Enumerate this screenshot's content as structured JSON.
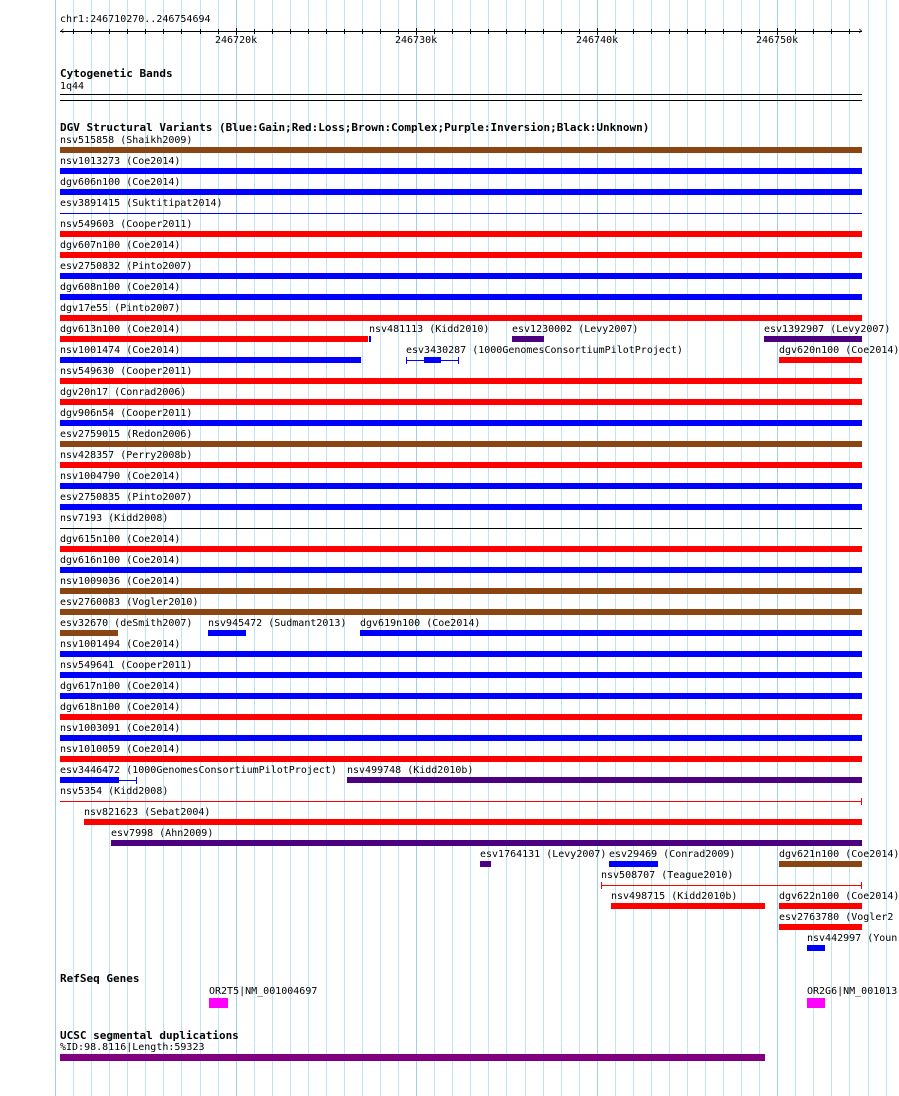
{
  "ruler": {
    "location": "chr1:246710270..246754694",
    "view_start": 246710270,
    "view_end": 246754694,
    "tick_labels": [
      {
        "pos": 246720000,
        "label": "246720k"
      },
      {
        "pos": 246730000,
        "label": "246730k"
      },
      {
        "pos": 246740000,
        "label": "246740k"
      },
      {
        "pos": 246750000,
        "label": "246750k"
      }
    ]
  },
  "cytoband": {
    "title": "Cytogenetic Bands",
    "band": "1q44"
  },
  "colors": {
    "gain": "#0000ff",
    "loss": "#ff0000",
    "complex": "#8b4513",
    "inversion": "#4b0082",
    "unknown": "#000000",
    "gene": "#ff00ff",
    "segdup": "#800080"
  },
  "dgv": {
    "title": "DGV Structural Variants (Blue:Gain;Red:Loss;Brown:Complex;Purple:Inversion;Black:Unknown)",
    "rows": [
      [
        {
          "label": "nsv515858 (Shaikh2009)",
          "type": "complex",
          "start": 246710270,
          "end": 246754694
        }
      ],
      [
        {
          "label": "nsv1013273 (Coe2014)",
          "type": "gain",
          "start": 246710270,
          "end": 246754694
        }
      ],
      [
        {
          "label": "dgv606n100 (Coe2014)",
          "type": "gain",
          "start": 246710270,
          "end": 246754694
        }
      ],
      [
        {
          "label": "esv3891415 (Suktitipat2014)",
          "type": "gain",
          "start": 246710270,
          "end": 246754694,
          "thin": true
        }
      ],
      [
        {
          "label": "nsv549603 (Cooper2011)",
          "type": "loss",
          "start": 246710270,
          "end": 246754694
        }
      ],
      [
        {
          "label": "dgv607n100 (Coe2014)",
          "type": "loss",
          "start": 246710270,
          "end": 246754694
        }
      ],
      [
        {
          "label": "esv2750832 (Pinto2007)",
          "type": "gain",
          "start": 246710270,
          "end": 246754694
        }
      ],
      [
        {
          "label": "dgv608n100 (Coe2014)",
          "type": "gain",
          "start": 246710270,
          "end": 246754694
        }
      ],
      [
        {
          "label": "dgv17e55 (Pinto2007)",
          "type": "loss",
          "start": 246710270,
          "end": 246754694
        }
      ],
      [
        {
          "label": "dgv613n100 (Coe2014)",
          "type": "loss",
          "start": 246710270,
          "end": 246727326
        },
        {
          "label": "nsv481113 (Kidd2010)",
          "type": "gain",
          "start": 246727381,
          "end": 246727492
        },
        {
          "label": "esv1230002 (Levy2007)",
          "type": "inversion",
          "start": 246735326,
          "end": 246737103
        },
        {
          "label": "esv1392907 (Levy2007)",
          "type": "inversion",
          "start": 246749270,
          "end": 246754694
        }
      ],
      [
        {
          "label": "nsv1001474 (Coe2014)",
          "type": "gain",
          "start": 246710270,
          "end": 246726937
        },
        {
          "label": "esv3430287 (1000GenomesConsortiumPilotProject)",
          "type": "gain",
          "start": 246729437,
          "end": 246732381,
          "thin": true,
          "thick_start": 246730437,
          "thick_end": 246731381
        },
        {
          "label": "dgv620n100 (Coe2014)",
          "type": "loss",
          "start": 246750103,
          "end": 246754694
        }
      ],
      [
        {
          "label": "nsv549630 (Cooper2011)",
          "type": "loss",
          "start": 246710270,
          "end": 246754694
        }
      ],
      [
        {
          "label": "dgv20n17 (Conrad2006)",
          "type": "loss",
          "start": 246710270,
          "end": 246754694
        }
      ],
      [
        {
          "label": "dgv906n54 (Cooper2011)",
          "type": "gain",
          "start": 246710270,
          "end": 246754694
        }
      ],
      [
        {
          "label": "esv2759015 (Redon2006)",
          "type": "complex",
          "start": 246710270,
          "end": 246754694
        }
      ],
      [
        {
          "label": "nsv428357 (Perry2008b)",
          "type": "loss",
          "start": 246710270,
          "end": 246754694
        }
      ],
      [
        {
          "label": "nsv1004790 (Coe2014)",
          "type": "gain",
          "start": 246710270,
          "end": 246754694
        }
      ],
      [
        {
          "label": "esv2750835 (Pinto2007)",
          "type": "gain",
          "start": 246710270,
          "end": 246754694
        }
      ],
      [
        {
          "label": "nsv7193 (Kidd2008)",
          "type": "unknown",
          "start": 246710270,
          "end": 246754694,
          "thin": true
        }
      ],
      [
        {
          "label": "dgv615n100 (Coe2014)",
          "type": "loss",
          "start": 246710270,
          "end": 246754694
        }
      ],
      [
        {
          "label": "dgv616n100 (Coe2014)",
          "type": "gain",
          "start": 246710270,
          "end": 246754694
        }
      ],
      [
        {
          "label": "nsv1009036 (Coe2014)",
          "type": "complex",
          "start": 246710270,
          "end": 246754694
        }
      ],
      [
        {
          "label": "esv2760083 (Vogler2010)",
          "type": "complex",
          "start": 246710270,
          "end": 246754694
        }
      ],
      [
        {
          "label": "esv32670 (deSmith2007)",
          "type": "complex",
          "start": 246710270,
          "end": 246713492
        },
        {
          "label": "nsv945472 (Sudmant2013)",
          "type": "gain",
          "start": 246718492,
          "end": 246720548
        },
        {
          "label": "dgv619n100 (Coe2014)",
          "type": "gain",
          "start": 246726881,
          "end": 246754694
        }
      ],
      [
        {
          "label": "nsv1001494 (Coe2014)",
          "type": "gain",
          "start": 246710270,
          "end": 246754694
        }
      ],
      [
        {
          "label": "nsv549641 (Cooper2011)",
          "type": "gain",
          "start": 246710270,
          "end": 246754694
        }
      ],
      [
        {
          "label": "dgv617n100 (Coe2014)",
          "type": "gain",
          "start": 246710270,
          "end": 246754694
        }
      ],
      [
        {
          "label": "dgv618n100 (Coe2014)",
          "type": "loss",
          "start": 246710270,
          "end": 246754694
        }
      ],
      [
        {
          "label": "nsv1003091 (Coe2014)",
          "type": "gain",
          "start": 246710270,
          "end": 246754694
        }
      ],
      [
        {
          "label": "nsv1010059 (Coe2014)",
          "type": "loss",
          "start": 246710270,
          "end": 246754694
        }
      ],
      [
        {
          "label": "esv3446472 (1000GenomesConsortiumPilotProject)",
          "type": "gain",
          "start": 246710270,
          "end": 246714548,
          "thin": true,
          "thick_start": 246710270,
          "thick_end": 246713548
        },
        {
          "label": "nsv499748 (Kidd2010b)",
          "type": "inversion",
          "start": 246726159,
          "end": 246754694
        }
      ],
      [
        {
          "label": "nsv5354 (Kidd2008)",
          "type": "loss",
          "start": 246710270,
          "end": 246754694,
          "thin": true
        }
      ],
      [
        {
          "label": "nsv821623 (Sebat2004)",
          "type": "loss",
          "start": 246711603,
          "end": 246754694
        }
      ],
      [
        {
          "label": "esv7998 (Ahn2009)",
          "type": "inversion",
          "start": 246713103,
          "end": 246754694
        }
      ],
      [
        {
          "label": "esv1764131 (Levy2007)",
          "type": "inversion",
          "start": 246733548,
          "end": 246734159
        },
        {
          "label": "esv29469 (Conrad2009)",
          "type": "gain",
          "start": 246740659,
          "end": 246743381
        },
        {
          "label": "dgv621n100 (Coe2014)",
          "type": "complex",
          "start": 246750103,
          "end": 246754694
        }
      ],
      [
        {
          "label": "nsv508707 (Teague2010)",
          "type": "loss",
          "start": 246740214,
          "end": 246754694,
          "thin": true
        }
      ],
      [
        {
          "label": "nsv498715 (Kidd2010b)",
          "type": "loss",
          "start": 246740770,
          "end": 246749326
        },
        {
          "label": "dgv622n100 (Coe2014)",
          "type": "loss",
          "start": 246750103,
          "end": 246754694
        }
      ],
      [
        {
          "label": "esv2763780 (Vogler2",
          "type": "loss",
          "start": 246750103,
          "end": 246754694
        }
      ],
      [
        {
          "label": "nsv442997 (Youn",
          "type": "gain",
          "start": 246751659,
          "end": 246752659
        }
      ]
    ]
  },
  "refseq": {
    "title": "RefSeq Genes",
    "genes": [
      {
        "label": "OR2T5|NM_001004697",
        "start": 246718548,
        "end": 246719603
      },
      {
        "label": "OR2G6|NM_001013",
        "start": 246751659,
        "end": 246752659
      }
    ]
  },
  "segdup": {
    "title": "UCSC segmental duplications",
    "features": [
      {
        "label": "%ID:98.8116|Length:59323",
        "start": 246710270,
        "end": 246749326
      }
    ]
  }
}
